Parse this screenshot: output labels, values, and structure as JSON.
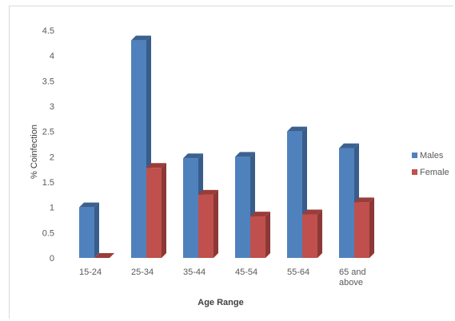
{
  "chart_data": {
    "type": "bar",
    "style": "3d-clustered-column",
    "categories": [
      [
        "15-24"
      ],
      [
        "25-34"
      ],
      [
        "35-44"
      ],
      [
        "45-54"
      ],
      [
        "55-64"
      ],
      [
        "65 and",
        "above"
      ]
    ],
    "series": [
      {
        "name": "Males",
        "values": [
          1.0,
          4.3,
          1.97,
          2.0,
          2.5,
          2.17
        ],
        "color": "#4f81bd",
        "side_color": "#385d8a",
        "top_color": "#3a6190"
      },
      {
        "name": "Female",
        "values": [
          0.0,
          1.78,
          1.25,
          0.82,
          0.86,
          1.1
        ],
        "color": "#c0504d",
        "side_color": "#8c3836",
        "top_color": "#9a3d3a"
      }
    ],
    "xlabel": "Age Range",
    "ylabel": "% Coinfection",
    "ylim": [
      0,
      4.5
    ],
    "yticks": [
      "0",
      "0.5",
      "1",
      "1.5",
      "2",
      "2.5",
      "3",
      "3.5",
      "4",
      "4.5"
    ],
    "grid": false,
    "legend_position": "right"
  }
}
